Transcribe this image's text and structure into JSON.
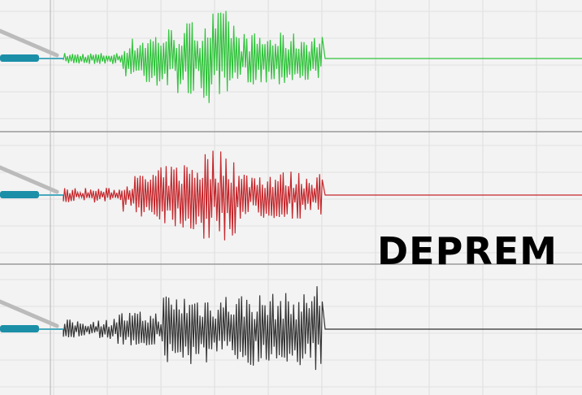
{
  "caption": "DEPREM"
}
